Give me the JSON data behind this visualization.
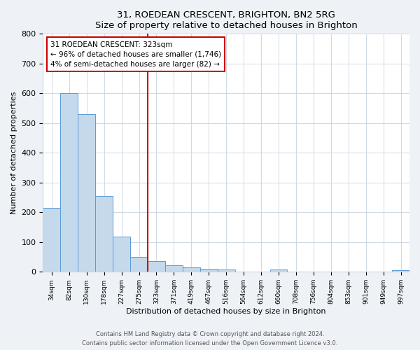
{
  "title": "31, ROEDEAN CRESCENT, BRIGHTON, BN2 5RG",
  "subtitle": "Size of property relative to detached houses in Brighton",
  "xlabel": "Distribution of detached houses by size in Brighton",
  "ylabel": "Number of detached properties",
  "bar_labels": [
    "34sqm",
    "82sqm",
    "130sqm",
    "178sqm",
    "227sqm",
    "275sqm",
    "323sqm",
    "371sqm",
    "419sqm",
    "467sqm",
    "516sqm",
    "564sqm",
    "612sqm",
    "660sqm",
    "708sqm",
    "756sqm",
    "804sqm",
    "853sqm",
    "901sqm",
    "949sqm",
    "997sqm"
  ],
  "bar_values": [
    215,
    600,
    530,
    255,
    118,
    50,
    35,
    22,
    15,
    10,
    8,
    0,
    0,
    7,
    0,
    0,
    0,
    0,
    0,
    0,
    5
  ],
  "bar_color": "#c5d9ec",
  "bar_edge_color": "#5b9bd5",
  "vline_index": 6,
  "vline_color": "#cc0000",
  "annotation_title": "31 ROEDEAN CRESCENT: 323sqm",
  "annotation_line1": "← 96% of detached houses are smaller (1,746)",
  "annotation_line2": "4% of semi-detached houses are larger (82) →",
  "ylim": [
    0,
    800
  ],
  "yticks": [
    0,
    100,
    200,
    300,
    400,
    500,
    600,
    700,
    800
  ],
  "footer_line1": "Contains HM Land Registry data © Crown copyright and database right 2024.",
  "footer_line2": "Contains public sector information licensed under the Open Government Licence v3.0.",
  "bg_color": "#eef2f7",
  "plot_bg_color": "#ffffff",
  "grid_color": "#c8d4e0"
}
